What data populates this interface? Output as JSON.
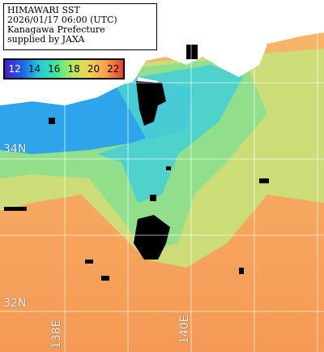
{
  "header": {
    "line1": "HIMAWARI SST",
    "line2": "2026/01/17 06:00 (UTC)",
    "line3": "Kanagawa Prefecture",
    "line4": "supplied by JAXA"
  },
  "legend": {
    "unit_values": [
      "12",
      "14",
      "16",
      "18",
      "20",
      "22"
    ],
    "colors": [
      "#4a1ed0",
      "#1e5ee8",
      "#22c8e0",
      "#3ce89a",
      "#b6e85a",
      "#f5d24e",
      "#f5a04a",
      "#e8402a"
    ]
  },
  "grid_labels": {
    "lat_34": "34N",
    "lat_32": "32N",
    "lon_138": "138E",
    "lon_140": "140E"
  },
  "colors": {
    "land": "#ffffff",
    "cloud": "#000000",
    "warm_sea": "#f59a55",
    "mid_sea": "#a8e07c",
    "cool_sea": "#48c8e8",
    "grid": "#ffffff"
  }
}
